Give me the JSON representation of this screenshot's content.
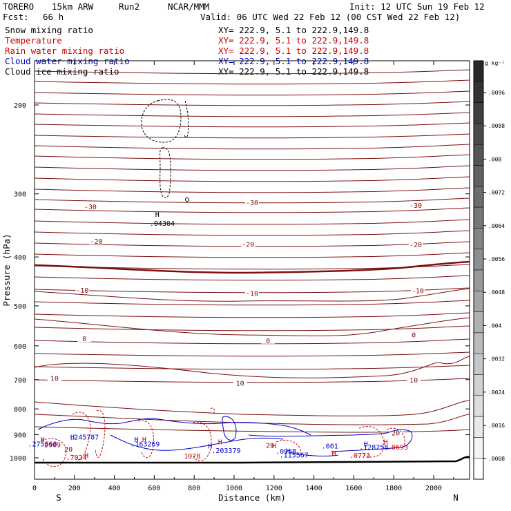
{
  "header": {
    "model": "TORERO",
    "resolution": "15km ARW",
    "run": "Run2",
    "org": "NCAR/MMM",
    "init": "Init: 12 UTC Sun 19 Feb 12",
    "fcst_label": "Fcst:",
    "fcst_value": "66 h",
    "valid": "Valid: 06 UTC Wed 22 Feb 12 (00 CST Wed 22 Feb 12)"
  },
  "fields": [
    {
      "name": "Snow mixing ratio",
      "xy": "XY= 222.9,  5.1 to 222.9,149.8",
      "color": "#000000",
      "xy_color": "#000000"
    },
    {
      "name": "Temperature",
      "xy": "XY= 222.9,  5.1 to 222.9,149.8",
      "color": "#cc0000",
      "xy_color": "#cc0000"
    },
    {
      "name": "Rain water mixing ratio",
      "xy": "XY= 222.9,  5.1 to 222.9,149.8",
      "color": "#cc0000",
      "xy_color": "#cc0000"
    },
    {
      "name": "Cloud water mixing ratio",
      "xy": "XY= 222.9,  5.1 to 222.9,149.8",
      "color": "#0000cc",
      "xy_color": "#0000cc"
    },
    {
      "name": "Cloud ice mixing ratio",
      "xy": "XY= 222.9,  5.1 to 222.9,149.8",
      "color": "#000000",
      "xy_color": "#000000"
    }
  ],
  "chart_data": {
    "type": "line",
    "xlabel": "Distance (km)",
    "ylabel": "Pressure (hPa)",
    "xlim": [
      0,
      2180
    ],
    "ylim": [
      1050,
      150
    ],
    "yscale": "log",
    "x_ticks": [
      0,
      200,
      400,
      600,
      800,
      1000,
      1200,
      1400,
      1600,
      1800,
      2000
    ],
    "y_ticks": [
      200,
      300,
      400,
      500,
      600,
      700,
      800,
      900,
      1000
    ],
    "endpoints": {
      "left": "S",
      "right": "N"
    },
    "temperature_contours": {
      "color": "#7a1010",
      "interval_C": 5,
      "labels": [
        {
          "text": "-30",
          "x": 280,
          "p": 318
        },
        {
          "text": "-30",
          "x": 1090,
          "p": 312
        },
        {
          "text": "-30",
          "x": 1910,
          "p": 316
        },
        {
          "text": "-20",
          "x": 310,
          "p": 372
        },
        {
          "text": "-20",
          "x": 1070,
          "p": 377
        },
        {
          "text": "-20",
          "x": 1910,
          "p": 378
        },
        {
          "text": "-10",
          "x": 240,
          "p": 465
        },
        {
          "text": "-10",
          "x": 1090,
          "p": 472
        },
        {
          "text": "-10",
          "x": 1920,
          "p": 466
        },
        {
          "text": "0",
          "x": 250,
          "p": 580
        },
        {
          "text": "0",
          "x": 1170,
          "p": 585
        },
        {
          "text": "0",
          "x": 1900,
          "p": 570
        },
        {
          "text": "10",
          "x": 100,
          "p": 695
        },
        {
          "text": "10",
          "x": 1030,
          "p": 710
        },
        {
          "text": "10",
          "x": 1900,
          "p": 700
        },
        {
          "text": "20",
          "x": 1810,
          "p": 892
        },
        {
          "text": "20",
          "x": 1180,
          "p": 944
        },
        {
          "text": "20",
          "x": 170,
          "p": 960
        }
      ]
    },
    "annotations": [
      {
        "text": ".04304",
        "x": 640,
        "p": 347,
        "color": "#000000"
      },
      {
        "text": "H",
        "x": 615,
        "p": 333,
        "color": "#000000"
      },
      {
        "text": ".245787",
        "x": 250,
        "p": 920,
        "color": "#0000cc"
      },
      {
        "text": ".275668",
        "x": 40,
        "p": 950,
        "color": "#0000cc"
      },
      {
        "text": ".163269",
        "x": 555,
        "p": 950,
        "color": "#0000cc"
      },
      {
        "text": ".203379",
        "x": 960,
        "p": 978,
        "color": "#0000cc"
      },
      {
        "text": ".001",
        "x": 1480,
        "p": 958,
        "color": "#0000cc"
      },
      {
        "text": ".128258",
        "x": 1700,
        "p": 963,
        "color": "#0000cc"
      },
      {
        "text": ".0693",
        "x": 1820,
        "p": 963,
        "color": "#cc0000"
      },
      {
        "text": ".115567",
        "x": 1300,
        "p": 998,
        "color": "#0000cc"
      },
      {
        "text": ".096B",
        "x": 1260,
        "p": 982,
        "color": "#0000cc"
      },
      {
        "text": "2969",
        "x": 90,
        "p": 953,
        "color": "#cc0000"
      },
      {
        "text": ".7024",
        "x": 210,
        "p": 1010,
        "color": "#cc0000"
      },
      {
        "text": "1078",
        "x": 790,
        "p": 1003,
        "color": "#cc0000"
      },
      {
        "text": ".0773",
        "x": 1630,
        "p": 1000,
        "color": "#cc0000"
      },
      {
        "text": "H",
        "x": 40,
        "p": 930,
        "color": "#cc0000"
      },
      {
        "text": "H",
        "x": 190,
        "p": 920,
        "color": "#0000cc"
      },
      {
        "text": "H",
        "x": 510,
        "p": 930,
        "color": "#0000cc"
      },
      {
        "text": "H",
        "x": 550,
        "p": 930,
        "color": "#cc0000"
      },
      {
        "text": "H",
        "x": 880,
        "p": 958,
        "color": "#0000cc"
      },
      {
        "text": "H",
        "x": 930,
        "p": 940,
        "color": "#cc0000"
      },
      {
        "text": "H",
        "x": 1200,
        "p": 957,
        "color": "#cc0000"
      },
      {
        "text": "H",
        "x": 1660,
        "p": 949,
        "color": "#0000cc"
      },
      {
        "text": "H",
        "x": 1760,
        "p": 940,
        "color": "#cc0000"
      },
      {
        "text": "H",
        "x": 260,
        "p": 1000,
        "color": "#cc0000"
      },
      {
        "text": "H",
        "x": 1500,
        "p": 990,
        "color": "#cc0000"
      },
      {
        "text": "H",
        "x": 1270,
        "p": 980,
        "color": "#0000cc"
      }
    ]
  },
  "colorbar": {
    "unit": "g kg⁻¹",
    "ticks": [
      ".0096",
      ".0088",
      ".008",
      ".0072",
      ".0064",
      ".0056",
      ".0048",
      ".004",
      ".0032",
      ".0024",
      ".0016",
      ".0008"
    ]
  }
}
